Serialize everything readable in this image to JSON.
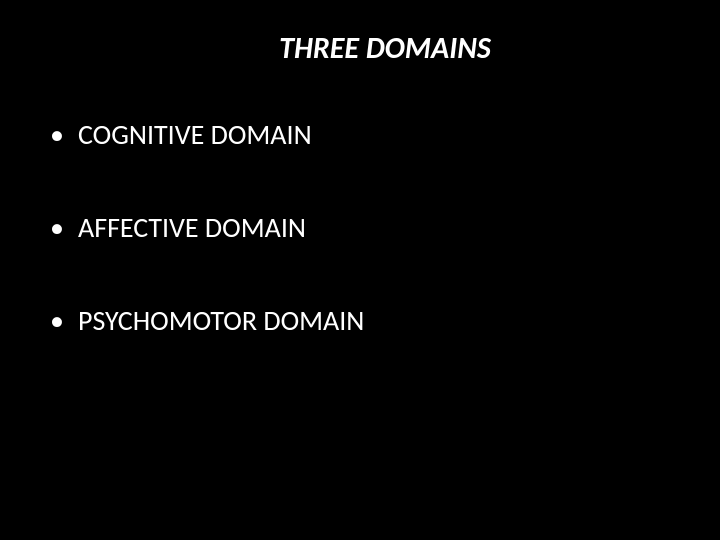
{
  "slide": {
    "title": "THREE DOMAINS",
    "title_fontsize": 30,
    "title_style": "italic",
    "title_weight": "bold",
    "background_color": "#000000",
    "text_color": "#ffffff",
    "bullets": [
      {
        "text": "COGNITIVE DOMAIN"
      },
      {
        "text": "AFFECTIVE DOMAIN"
      },
      {
        "text": "PSYCHOMOTOR DOMAIN"
      }
    ],
    "bullet_fontsize": 28
  }
}
